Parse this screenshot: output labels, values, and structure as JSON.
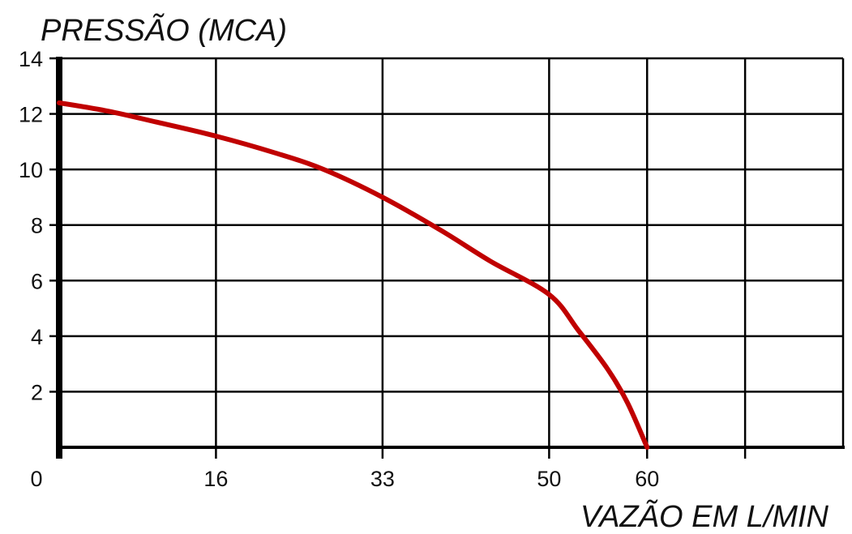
{
  "chart_data": {
    "type": "line",
    "title": "",
    "ylabel": "PRESSÃO (MCA)",
    "xlabel": "VAZÃO EM L/MIN",
    "xlim": [
      0,
      80
    ],
    "ylim": [
      0,
      14
    ],
    "x_ticks": [
      {
        "value": 0,
        "label": "0"
      },
      {
        "value": 16,
        "label": "16"
      },
      {
        "value": 33,
        "label": "33"
      },
      {
        "value": 50,
        "label": "50"
      },
      {
        "value": 60,
        "label": "60"
      }
    ],
    "y_ticks": [
      {
        "value": 2,
        "label": "2"
      },
      {
        "value": 4,
        "label": "4"
      },
      {
        "value": 6,
        "label": "6"
      },
      {
        "value": 8,
        "label": "8"
      },
      {
        "value": 10,
        "label": "10"
      },
      {
        "value": 12,
        "label": "12"
      },
      {
        "value": 14,
        "label": "14"
      }
    ],
    "grid": true,
    "series": [
      {
        "color": "#c00000",
        "x": [
          0,
          5,
          10,
          16,
          22,
          27,
          33,
          39,
          44,
          50,
          53,
          56,
          58,
          60
        ],
        "y": [
          12.4,
          12.1,
          11.7,
          11.2,
          10.6,
          10.0,
          9.0,
          7.8,
          6.7,
          5.5,
          4.2,
          2.8,
          1.6,
          0
        ]
      }
    ]
  }
}
